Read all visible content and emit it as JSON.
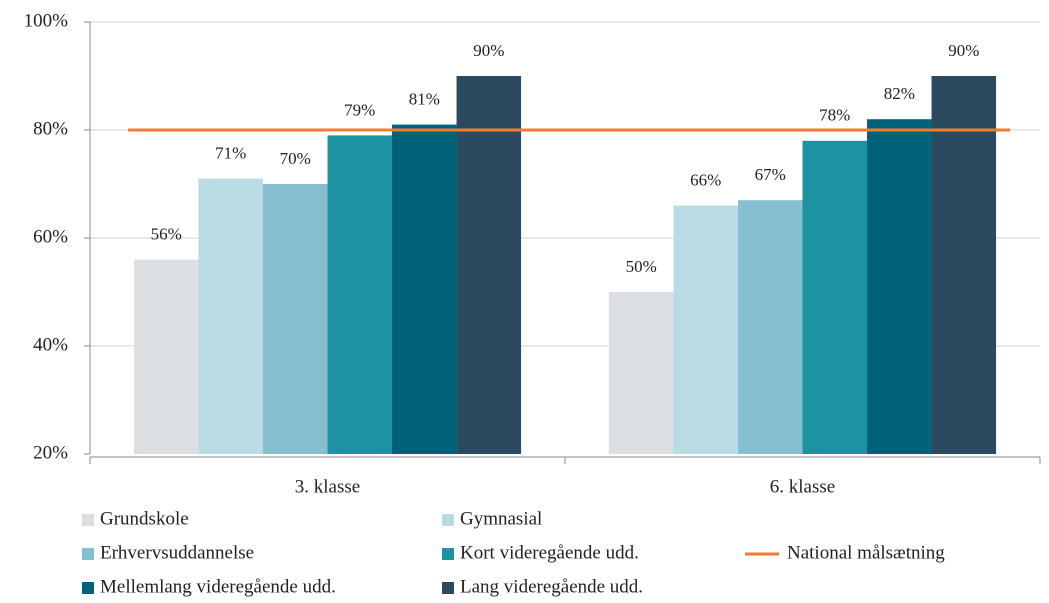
{
  "chart_data": {
    "type": "bar",
    "categories": [
      "3. klasse",
      "6. klasse"
    ],
    "series": [
      {
        "name": "Grundskole",
        "color": "#dcdfe2",
        "values": [
          56,
          50
        ],
        "value_labels": [
          "56%",
          "50%"
        ]
      },
      {
        "name": "Gymnasial",
        "color": "#b9dbe4",
        "values": [
          71,
          66
        ],
        "value_labels": [
          "71%",
          "66%"
        ]
      },
      {
        "name": "Erhvervsuddannelse",
        "color": "#86bfcf",
        "values": [
          70,
          67
        ],
        "value_labels": [
          "70%",
          "67%"
        ]
      },
      {
        "name": "Kort videregående udd.",
        "color": "#1b93a3",
        "values": [
          79,
          78
        ],
        "value_labels": [
          "79%",
          "78%"
        ]
      },
      {
        "name": "Mellemlang videregående udd.",
        "color": "#006279",
        "values": [
          81,
          82
        ],
        "value_labels": [
          "81%",
          "82%"
        ]
      },
      {
        "name": "Lang videregående udd.",
        "color": "#2b4a60",
        "values": [
          90,
          90
        ],
        "value_labels": [
          "90%",
          "90%"
        ]
      },
      {
        "name": "National målsætning",
        "color": "#ed7d31",
        "type": "line",
        "values": [
          80,
          80
        ]
      }
    ],
    "ylim": [
      20,
      100
    ],
    "yticks": [
      {
        "value": 20,
        "label": "20%"
      },
      {
        "value": 40,
        "label": "40%"
      },
      {
        "value": 60,
        "label": "60%"
      },
      {
        "value": 80,
        "label": "80%"
      },
      {
        "value": 100,
        "label": "100%"
      }
    ],
    "grid": true
  }
}
